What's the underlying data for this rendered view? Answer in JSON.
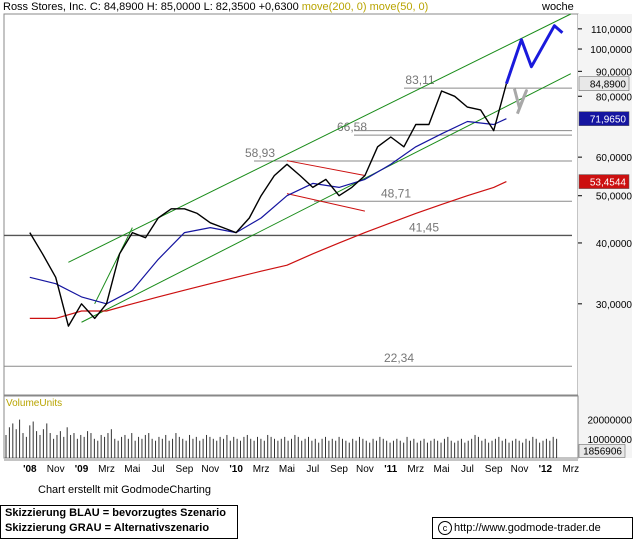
{
  "header": {
    "name": "Ross Stores, Inc.",
    "ohlc": "C: 84,8900 H: 85,0000 L: 82,3500 +0,6300",
    "ma_long": "move(200, 0)",
    "ma_short": "move(50, 0)"
  },
  "period": "woche",
  "credit": "Chart erstellt mit GodmodeCharting",
  "legend": {
    "line1": "Skizzierung BLAU = bevorzugtes Szenario",
    "line2": "Skizzierung GRAU = Alternativszenario"
  },
  "url": "http://www.godmode-trader.de",
  "colors": {
    "price": "#000000",
    "ma50": "#1515a0",
    "ma200": "#cc1010",
    "channel": "#1a8c1a",
    "support": "#8a8a8a",
    "blue_scenario": "#1a1adc",
    "grey_scenario": "#a8a8a8",
    "volume": "#333333"
  },
  "chart_data": {
    "type": "line",
    "title": "Ross Stores, Inc.",
    "interval": "woche",
    "y_scale": "log",
    "ylim": [
      19.5,
      118
    ],
    "y_ticks": [
      "110,0000",
      "100,0000",
      "90,0000",
      "80,0000",
      "60,0000",
      "50,0000",
      "40,0000",
      "30,0000"
    ],
    "y_tick_values": [
      110,
      100,
      90,
      80,
      60,
      50,
      40,
      30
    ],
    "x_tick_labels": [
      "'08",
      "Nov",
      "'09",
      "Mrz",
      "Mai",
      "Jul",
      "Sep",
      "Nov",
      "'10",
      "Mrz",
      "Mai",
      "Jul",
      "Sep",
      "Nov",
      "'11",
      "Mrz",
      "Mai",
      "Jul",
      "Sep",
      "Nov",
      "'12",
      "Mrz"
    ],
    "x_tick_dates": [
      "2008-09",
      "2008-11",
      "2009-01",
      "2009-03",
      "2009-05",
      "2009-07",
      "2009-09",
      "2009-11",
      "2010-01",
      "2010-03",
      "2010-05",
      "2010-07",
      "2010-09",
      "2010-11",
      "2011-01",
      "2011-03",
      "2011-05",
      "2011-07",
      "2011-09",
      "2011-11",
      "2012-01",
      "2012-03"
    ],
    "price_badges": [
      {
        "label": "84,8900",
        "value": 84.89,
        "color": "#e8e8e8",
        "text_color": "#000000"
      },
      {
        "label": "71,9650",
        "value": 71.965,
        "color": "#1515a0",
        "text_color": "#ffffff"
      },
      {
        "label": "53,4544",
        "value": 53.4544,
        "color": "#cc1010",
        "text_color": "#ffffff"
      }
    ],
    "horizontal_levels": [
      {
        "label": "83,11",
        "value": 83.11
      },
      {
        "label": "66,58",
        "value": 66.58
      },
      {
        "label": "58,93",
        "value": 58.93
      },
      {
        "label": "48,71",
        "value": 48.71
      },
      {
        "label": "41,45",
        "value": 41.45
      },
      {
        "label": "22,34",
        "value": 22.34
      }
    ],
    "series": [
      {
        "name": "Ross Stores, Inc.",
        "x": [
          "2008-09",
          "2008-10",
          "2008-11",
          "2008-12",
          "2009-01",
          "2009-02",
          "2009-03",
          "2009-04",
          "2009-05",
          "2009-06",
          "2009-07",
          "2009-08",
          "2009-09",
          "2009-10",
          "2009-11",
          "2009-12",
          "2010-01",
          "2010-02",
          "2010-03",
          "2010-04",
          "2010-05",
          "2010-06",
          "2010-07",
          "2010-08",
          "2010-09",
          "2010-10",
          "2010-11",
          "2010-12",
          "2011-01",
          "2011-02",
          "2011-03",
          "2011-04",
          "2011-05",
          "2011-06",
          "2011-07",
          "2011-08",
          "2011-09",
          "2011-10"
        ],
        "values": [
          42,
          38,
          34,
          27,
          30,
          28,
          30,
          38,
          42,
          41,
          45,
          47,
          47,
          46,
          44,
          43,
          42,
          45,
          50,
          55,
          58,
          55,
          52,
          54,
          50,
          52,
          55,
          63,
          66,
          63,
          70,
          70,
          82,
          80,
          76,
          75,
          68,
          84.89
        ]
      },
      {
        "name": "move(50, 0)",
        "x": [
          "2008-09",
          "2008-11",
          "2009-01",
          "2009-03",
          "2009-05",
          "2009-07",
          "2009-09",
          "2009-11",
          "2010-01",
          "2010-03",
          "2010-05",
          "2010-07",
          "2010-09",
          "2010-11",
          "2011-01",
          "2011-03",
          "2011-05",
          "2011-07",
          "2011-09",
          "2011-10"
        ],
        "values": [
          34,
          33,
          31,
          30,
          32,
          37,
          42,
          43,
          42,
          45,
          50,
          53,
          52,
          54,
          58,
          63,
          67,
          71,
          70,
          71.965
        ]
      },
      {
        "name": "move(200, 0)",
        "x": [
          "2008-09",
          "2008-11",
          "2009-01",
          "2009-03",
          "2009-05",
          "2009-07",
          "2009-09",
          "2009-11",
          "2010-01",
          "2010-03",
          "2010-05",
          "2010-07",
          "2010-09",
          "2010-11",
          "2011-01",
          "2011-03",
          "2011-05",
          "2011-07",
          "2011-09",
          "2011-10"
        ],
        "values": [
          28,
          28,
          29,
          29,
          30,
          31,
          32,
          33,
          34,
          35,
          36,
          38,
          40,
          42,
          44,
          46,
          48,
          50,
          52,
          53.4544
        ]
      }
    ],
    "volume": {
      "title": "VolumeUnits",
      "y_ticks": [
        "20000000",
        "10000000"
      ],
      "y_tick_values": [
        20000000,
        10000000
      ],
      "last_label": "1856906",
      "last_value": 1856906,
      "values": [
        12,
        16,
        18,
        15,
        20,
        13,
        11,
        17,
        19,
        14,
        12,
        15,
        18,
        13,
        10,
        12,
        14,
        11,
        16,
        12,
        13,
        10,
        12,
        11,
        14,
        13,
        10,
        9,
        12,
        11,
        13,
        15,
        10,
        9,
        11,
        12,
        10,
        13,
        9,
        11,
        10,
        12,
        13,
        10,
        9,
        11,
        10,
        12,
        9,
        10,
        13,
        11,
        10,
        9,
        12,
        10,
        11,
        9,
        10,
        12,
        11,
        10,
        9,
        11,
        10,
        12,
        9,
        11,
        10,
        9,
        11,
        12,
        10,
        9,
        11,
        10,
        9,
        12,
        11,
        10,
        9,
        10,
        11,
        9,
        10,
        12,
        11,
        9,
        10,
        11,
        9,
        10,
        8,
        10,
        11,
        9,
        10,
        9,
        11,
        10,
        9,
        8,
        10,
        9,
        11,
        10,
        9,
        8,
        10,
        9,
        11,
        10,
        9,
        8,
        9,
        10,
        9,
        8,
        11,
        9,
        10,
        8,
        9,
        10,
        8,
        9,
        10,
        9,
        8,
        10,
        11,
        9,
        8,
        9,
        10,
        8,
        9,
        10,
        12,
        11,
        9,
        10,
        8,
        9,
        10,
        11,
        9,
        10,
        8,
        9,
        10,
        9,
        8,
        10,
        9,
        11,
        10,
        8,
        9,
        10,
        9,
        11,
        10
      ]
    }
  }
}
